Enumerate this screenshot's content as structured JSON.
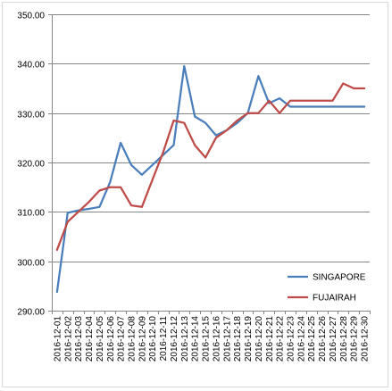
{
  "chart_data": {
    "type": "line",
    "title": "",
    "xlabel": "",
    "ylabel": "",
    "ylim": [
      290,
      350
    ],
    "y_ticks": [
      "290.00",
      "300.00",
      "310.00",
      "320.00",
      "330.00",
      "340.00",
      "350.00"
    ],
    "grid": "horizontal",
    "legend_position": "right-lower",
    "categories": [
      "2016-12-01",
      "2016-12-02",
      "2016-12-03",
      "2016-12-04",
      "2016-12-05",
      "2016-12-06",
      "2016-12-07",
      "2016-12-08",
      "2016-12-09",
      "2016-12-10",
      "2016-12-11",
      "2016-12-12",
      "2016-12-13",
      "2016-12-14",
      "2016-12-15",
      "2016-12-16",
      "2016-12-17",
      "2016-12-18",
      "2016-12-19",
      "2016-12-20",
      "2016-12-21",
      "2016-12-22",
      "2016-12-23",
      "2016-12-24",
      "2016-12-25",
      "2016-12-26",
      "2016-12-27",
      "2016-12-28",
      "2016-12-29",
      "2016-12-30"
    ],
    "series": [
      {
        "name": "SINGAPORE",
        "color": "#4a7ebb",
        "values": [
          293.8,
          309.8,
          310.3,
          310.6,
          311.0,
          316.0,
          324.0,
          319.5,
          317.5,
          319.5,
          321.5,
          323.5,
          339.5,
          329.3,
          328.0,
          325.5,
          326.5,
          328.0,
          330.0,
          337.5,
          332.0,
          333.0,
          331.3,
          331.3,
          331.3,
          331.3,
          331.3,
          331.3,
          331.3,
          331.3
        ]
      },
      {
        "name": "FUJAIRAH",
        "color": "#be4b48",
        "values": [
          302.3,
          308.0,
          310.0,
          312.0,
          314.3,
          315.0,
          315.0,
          311.3,
          311.0,
          316.5,
          322.0,
          328.5,
          328.0,
          323.5,
          321.0,
          325.0,
          326.5,
          328.5,
          330.0,
          330.0,
          332.5,
          330.0,
          332.5,
          332.5,
          332.5,
          332.5,
          332.5,
          336.0,
          335.0,
          335.0
        ]
      }
    ]
  }
}
